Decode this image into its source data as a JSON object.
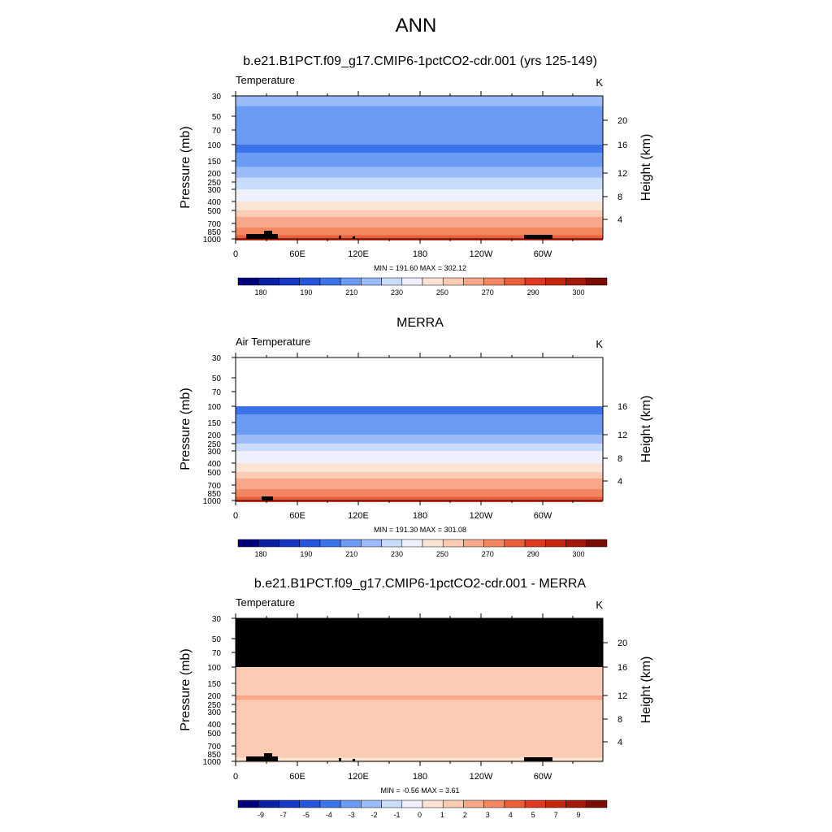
{
  "page_title": "ANN",
  "colors": {
    "temp_scale": [
      "#00007a",
      "#0a1fa3",
      "#1637c2",
      "#2556dc",
      "#3b74ea",
      "#6c9bf3",
      "#9bbcf8",
      "#c8dcfb",
      "#eef1fb",
      "#fbe4d4",
      "#fbcbb4",
      "#f7a88a",
      "#f38762",
      "#ec5f3c",
      "#e0391f",
      "#c8260f",
      "#a2180a",
      "#7a0c04"
    ],
    "diff_scale": [
      "#00007a",
      "#0a1fa3",
      "#1637c2",
      "#2556dc",
      "#3b74ea",
      "#6c9bf3",
      "#9bbcf8",
      "#c8dcfb",
      "#eef1fb",
      "#fbe4d4",
      "#fbcbb4",
      "#f7a88a",
      "#f38762",
      "#ec5f3c",
      "#e0391f",
      "#c8260f",
      "#a2180a",
      "#7a0c04"
    ],
    "missing": "#000000"
  },
  "chart_data": [
    {
      "type": "heatmap",
      "title": "b.e21.B1PCT.f09_g17.CMIP6-1pctCO2-cdr.001 (yrs 125-149)",
      "left_label": "Temperature",
      "units": "K",
      "ylabel": "Pressure (mb)",
      "y2label": "Height (km)",
      "x_ticks": [
        "0",
        "60E",
        "120E",
        "180",
        "120W",
        "60W"
      ],
      "y_ticks": [
        "30",
        "50",
        "70",
        "100",
        "150",
        "200",
        "250",
        "300",
        "400",
        "500",
        "700",
        "850",
        "1000"
      ],
      "y2_ticks": [
        "20",
        "16",
        "12",
        "8",
        "4"
      ],
      "stats": "MIN = 191.60  MAX = 302.12",
      "colorbar_labels": [
        "180",
        "190",
        "210",
        "230",
        "250",
        "270",
        "290",
        "300"
      ],
      "levels": [
        {
          "p": 30,
          "t": 212
        },
        {
          "p": 50,
          "t": 206
        },
        {
          "p": 70,
          "t": 202
        },
        {
          "p": 100,
          "t": 200
        },
        {
          "p": 150,
          "t": 207
        },
        {
          "p": 200,
          "t": 216
        },
        {
          "p": 250,
          "t": 225
        },
        {
          "p": 300,
          "t": 234
        },
        {
          "p": 400,
          "t": 245
        },
        {
          "p": 500,
          "t": 255
        },
        {
          "p": 700,
          "t": 270
        },
        {
          "p": 850,
          "t": 280
        },
        {
          "p": 1000,
          "t": 288
        }
      ],
      "has_upper_data": true
    },
    {
      "type": "heatmap",
      "title": "MERRA",
      "left_label": "Air Temperature",
      "units": "K",
      "ylabel": "Pressure (mb)",
      "y2label": "Height (km)",
      "x_ticks": [
        "0",
        "60E",
        "120E",
        "180",
        "120W",
        "60W"
      ],
      "y_ticks": [
        "30",
        "50",
        "70",
        "100",
        "150",
        "200",
        "250",
        "300",
        "400",
        "500",
        "700",
        "850",
        "1000"
      ],
      "y2_ticks": [
        "16",
        "12",
        "8",
        "4"
      ],
      "stats": "MIN = 191.30  MAX = 301.08",
      "colorbar_labels": [
        "180",
        "190",
        "210",
        "230",
        "250",
        "270",
        "290",
        "300"
      ],
      "levels": [
        {
          "p": 100,
          "t": 198
        },
        {
          "p": 150,
          "t": 205
        },
        {
          "p": 200,
          "t": 215
        },
        {
          "p": 250,
          "t": 224
        },
        {
          "p": 300,
          "t": 233
        },
        {
          "p": 400,
          "t": 244
        },
        {
          "p": 500,
          "t": 254
        },
        {
          "p": 700,
          "t": 268
        },
        {
          "p": 850,
          "t": 278
        },
        {
          "p": 1000,
          "t": 286
        }
      ],
      "has_upper_data": false
    },
    {
      "type": "heatmap",
      "title": "b.e21.B1PCT.f09_g17.CMIP6-1pctCO2-cdr.001 - MERRA",
      "left_label": "Temperature",
      "units": "K",
      "ylabel": "Pressure (mb)",
      "y2label": "Height (km)",
      "x_ticks": [
        "0",
        "60E",
        "120E",
        "180",
        "120W",
        "60W"
      ],
      "y_ticks": [
        "30",
        "50",
        "70",
        "100",
        "150",
        "200",
        "250",
        "300",
        "400",
        "500",
        "700",
        "850",
        "1000"
      ],
      "y2_ticks": [
        "20",
        "16",
        "12",
        "8",
        "4"
      ],
      "stats": "MIN =  -0.56  MAX =   3.61",
      "colorbar_labels": [
        "-9",
        "-7",
        "-5",
        "-4",
        "-3",
        "-2",
        "-1",
        "0",
        "1",
        "2",
        "3",
        "4",
        "5",
        "7",
        "9"
      ],
      "levels": [
        {
          "p": 100,
          "d": 1.2
        },
        {
          "p": 150,
          "d": 1.6
        },
        {
          "p": 200,
          "d": 2.1
        },
        {
          "p": 250,
          "d": 1.8
        },
        {
          "p": 300,
          "d": 1.5
        },
        {
          "p": 400,
          "d": 2.0
        },
        {
          "p": 500,
          "d": 1.6
        },
        {
          "p": 700,
          "d": 1.3
        },
        {
          "p": 850,
          "d": 1.1
        },
        {
          "p": 1000,
          "d": 0.8
        }
      ],
      "missing_above_mb": 100
    }
  ]
}
